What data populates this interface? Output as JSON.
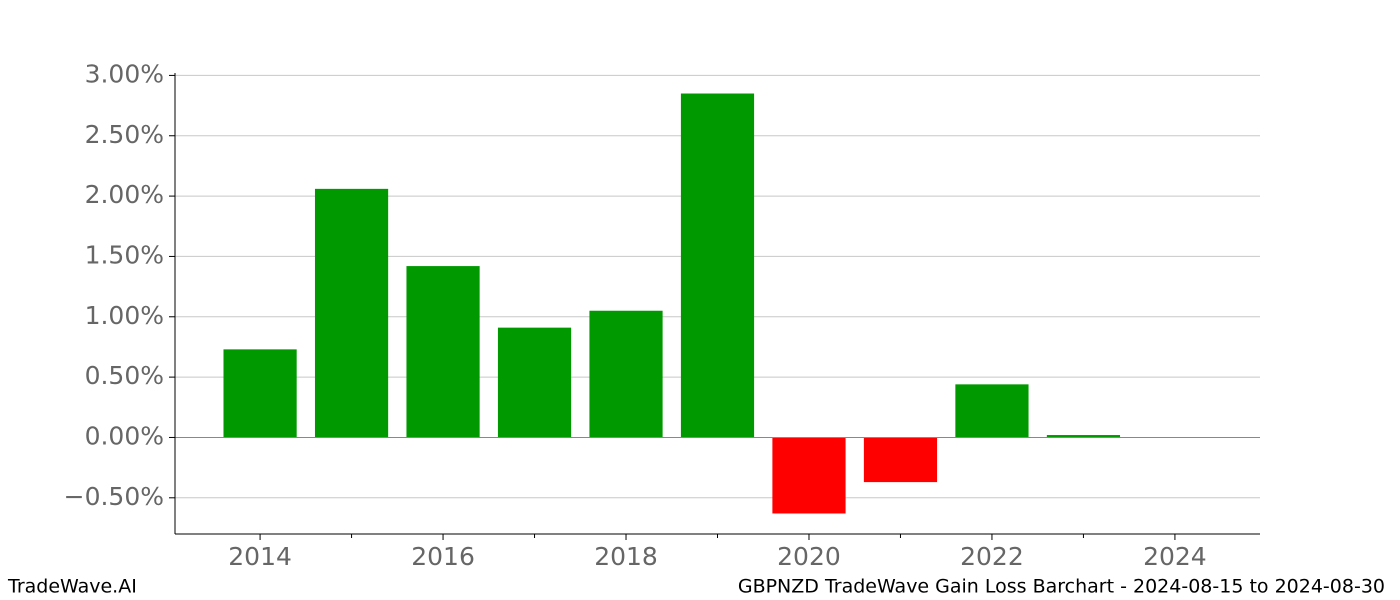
{
  "chart_data": {
    "type": "bar",
    "x": [
      2014,
      2015,
      2016,
      2017,
      2018,
      2019,
      2020,
      2021,
      2022,
      2023
    ],
    "values": [
      0.73,
      2.06,
      1.42,
      0.91,
      1.05,
      2.85,
      -0.63,
      -0.37,
      0.44,
      0.02
    ],
    "colors": [
      "#009900",
      "#009900",
      "#009900",
      "#009900",
      "#009900",
      "#009900",
      "#ff0000",
      "#ff0000",
      "#009900",
      "#009900"
    ],
    "xlim": [
      2013.07,
      2024.93
    ],
    "xticks": [
      2014,
      2016,
      2018,
      2020,
      2022,
      2024
    ],
    "minor_xticks": [
      2015,
      2017,
      2019,
      2021,
      2023
    ],
    "ylim": [
      -0.8,
      3.02
    ],
    "yticks": [
      {
        "value": -0.5,
        "label": "−0.50%"
      },
      {
        "value": 0,
        "label": "0.00%"
      },
      {
        "value": 0.5,
        "label": "0.50%"
      },
      {
        "value": 1,
        "label": "1.00%"
      },
      {
        "value": 1.5,
        "label": "1.50%"
      },
      {
        "value": 2,
        "label": "2.00%"
      },
      {
        "value": 2.5,
        "label": "2.50%"
      },
      {
        "value": 3,
        "label": "3.00%"
      }
    ],
    "grid": true,
    "footer_left": "TradeWave.AI",
    "footer_right": "GBPNZD TradeWave Gain Loss Barchart - 2024-08-15 to 2024-08-30"
  }
}
